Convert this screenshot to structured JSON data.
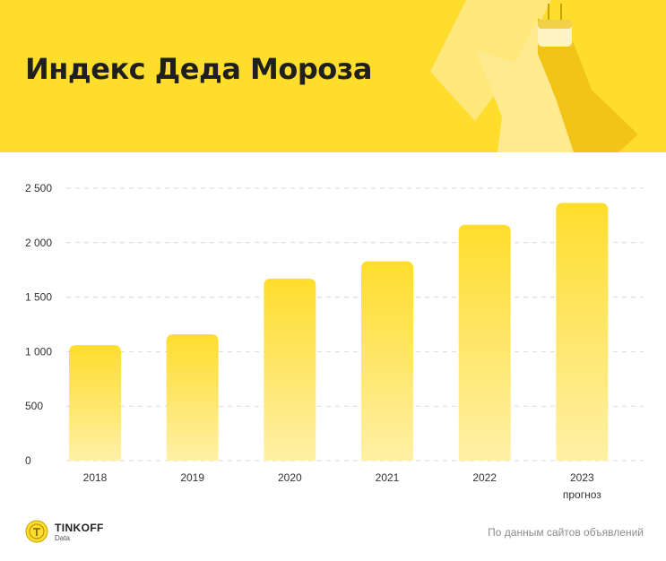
{
  "header": {
    "title": "Индекс Деда Мороза",
    "background_color": "#ffdd2d"
  },
  "chart_data": {
    "type": "bar",
    "title": "Индекс Деда Мороза",
    "categories": [
      "2018",
      "2019",
      "2020",
      "2021",
      "2022",
      "2023"
    ],
    "category_notes": [
      "",
      "",
      "",
      "",
      "",
      "прогноз"
    ],
    "values": [
      1060,
      1160,
      1670,
      1830,
      2165,
      2365
    ],
    "ylim": [
      0,
      2500
    ],
    "y_ticks": [
      {
        "value": 0,
        "label": "0"
      },
      {
        "value": 500,
        "label": "500"
      },
      {
        "value": 1000,
        "label": "1 000"
      },
      {
        "value": 1500,
        "label": "1 500"
      },
      {
        "value": 2000,
        "label": "2 000"
      },
      {
        "value": 2500,
        "label": "2 500"
      }
    ],
    "xlabel": "",
    "ylabel": "",
    "grid": "horizontal dashed",
    "legend": "none",
    "bar_color_top": "#ffdd2d",
    "bar_color_bottom": "#fff0a6"
  },
  "footer": {
    "brand": "TINKOFF",
    "brand_sub": "Data",
    "source": "По данным сайтов объявлений"
  }
}
